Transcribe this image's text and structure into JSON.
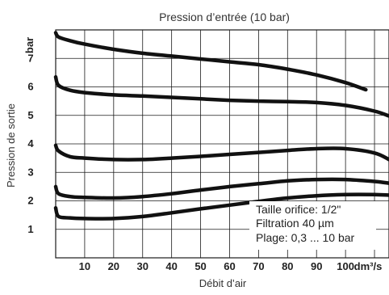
{
  "chart_data": {
    "type": "line",
    "title": "Pression d’entrée (10 bar)",
    "xlabel": "Débit d’air",
    "ylabel": "Pression de sortie",
    "x_unit": "dm³/s",
    "y_unit": "bar",
    "xlim": [
      0,
      115
    ],
    "ylim": [
      0,
      8
    ],
    "x_ticks": [
      "10",
      "20",
      "30",
      "40",
      "50",
      "60",
      "70",
      "80",
      "90",
      "100"
    ],
    "y_ticks": [
      "1",
      "2",
      "3",
      "4",
      "5",
      "6",
      "7"
    ],
    "grid": true,
    "series": [
      {
        "x": [
          0,
          1,
          5,
          10,
          20,
          30,
          40,
          50,
          60,
          70,
          80,
          90,
          100,
          107
        ],
        "y": [
          7.9,
          7.75,
          7.62,
          7.5,
          7.32,
          7.18,
          7.08,
          6.98,
          6.88,
          6.78,
          6.62,
          6.42,
          6.15,
          5.9
        ]
      },
      {
        "x": [
          0,
          1,
          5,
          10,
          20,
          30,
          40,
          50,
          60,
          70,
          80,
          90,
          100,
          110,
          115
        ],
        "y": [
          6.35,
          6.05,
          5.88,
          5.8,
          5.72,
          5.68,
          5.63,
          5.58,
          5.53,
          5.5,
          5.48,
          5.45,
          5.35,
          5.15,
          4.98
        ]
      },
      {
        "x": [
          0,
          1,
          5,
          10,
          20,
          30,
          40,
          50,
          60,
          70,
          80,
          90,
          100,
          110,
          115
        ],
        "y": [
          3.95,
          3.75,
          3.55,
          3.5,
          3.45,
          3.45,
          3.5,
          3.56,
          3.63,
          3.7,
          3.77,
          3.83,
          3.83,
          3.68,
          3.45
        ]
      },
      {
        "x": [
          0,
          1,
          5,
          10,
          20,
          30,
          40,
          50,
          60,
          70,
          80,
          90,
          100,
          110,
          115
        ],
        "y": [
          2.5,
          2.25,
          2.15,
          2.12,
          2.1,
          2.15,
          2.25,
          2.38,
          2.5,
          2.6,
          2.7,
          2.75,
          2.75,
          2.68,
          2.62
        ]
      },
      {
        "x": [
          0,
          1,
          5,
          10,
          20,
          30,
          40,
          50,
          60,
          70,
          80,
          90,
          100,
          110,
          115
        ],
        "y": [
          1.75,
          1.45,
          1.4,
          1.38,
          1.38,
          1.45,
          1.58,
          1.72,
          1.85,
          1.98,
          2.1,
          2.18,
          2.22,
          2.22,
          2.2
        ]
      }
    ],
    "annotations": [
      "Taille orifice: 1/2\"",
      "Filtration 40 µm",
      "Plage: 0,3 ... 10 bar"
    ]
  }
}
